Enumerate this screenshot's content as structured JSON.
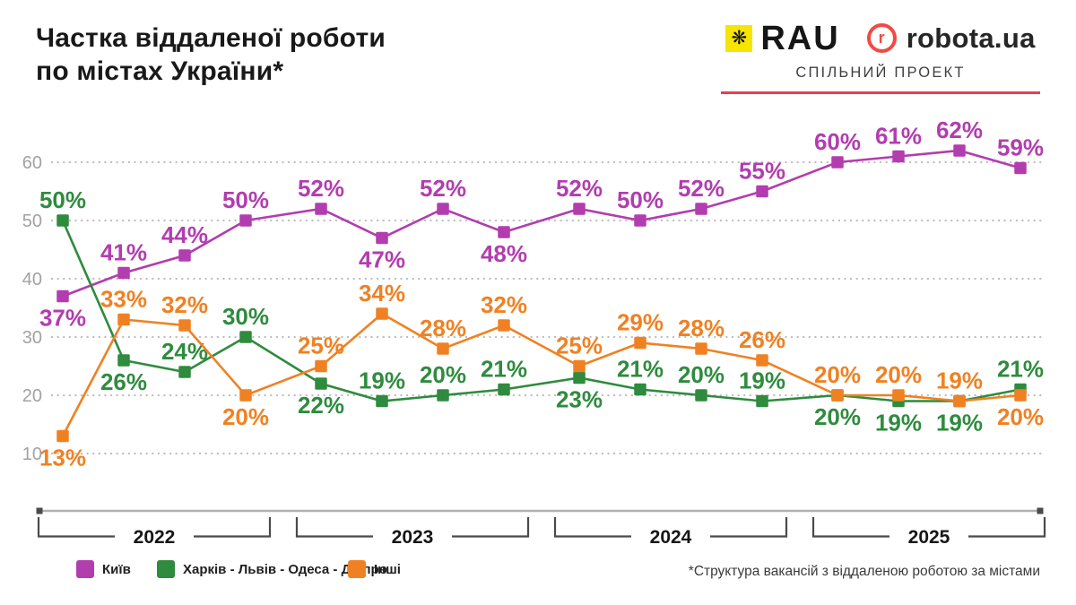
{
  "page": {
    "title_line1": "Частка віддаленої роботи",
    "title_line2": "по містах України*"
  },
  "header": {
    "rau_icon_glyph": "❋",
    "rau_text": "RAU",
    "robota_r": "r",
    "robota_text": "robota.ua",
    "subtitle": "СПІЛЬНИЙ ПРОЕКТ"
  },
  "footnote": "*Структура вакансій з віддаленою роботою за містами",
  "colors": {
    "rau_yellow": "#f6e500",
    "robota_red": "#f14a44",
    "accent_red": "#ef3a51",
    "axis_gray": "#b0b0b0",
    "bracket": "#4a4a4a",
    "grid": "#bdbdbd",
    "tick_label": "#a2a2a2",
    "year_label": "#161616"
  },
  "chart_data": {
    "type": "line",
    "title": "Частка віддаленої роботи по містах України*",
    "value_unit": "%",
    "x_axis": {
      "groups": [
        "2022",
        "2023",
        "2024",
        "2025"
      ],
      "points_per_group": 4,
      "granularity": "quarterly"
    },
    "y_axis": {
      "ticks": [
        10,
        20,
        30,
        40,
        50,
        60
      ],
      "range": [
        8,
        66
      ],
      "grid": "dotted-horizontal"
    },
    "legend_position": "bottom-left",
    "series": [
      {
        "name": "Київ",
        "color": "#b23daf",
        "values": [
          37,
          41,
          44,
          50,
          52,
          47,
          52,
          48,
          52,
          50,
          52,
          55,
          60,
          61,
          62,
          59
        ],
        "label_positions": [
          "below",
          "above",
          "above",
          "above",
          "above",
          "below",
          "above",
          "below",
          "above",
          "above",
          "above",
          "above",
          "above",
          "above",
          "above",
          "above"
        ]
      },
      {
        "name": "Харків - Львів - Одеса - Дніпро",
        "color": "#2f8b3e",
        "values": [
          50,
          26,
          24,
          30,
          22,
          19,
          20,
          21,
          23,
          21,
          20,
          19,
          20,
          19,
          19,
          21
        ],
        "label_positions": [
          "above",
          "below",
          "above",
          "above",
          "below",
          "above",
          "above",
          "above",
          "below",
          "above",
          "above",
          "above",
          "below",
          "below",
          "below",
          "above"
        ]
      },
      {
        "name": "Інші",
        "color": "#f08122",
        "values": [
          13,
          33,
          32,
          20,
          25,
          34,
          28,
          32,
          25,
          29,
          28,
          26,
          20,
          20,
          19,
          20
        ],
        "label_positions": [
          "below",
          "above",
          "above",
          "below",
          "above",
          "above",
          "above",
          "above",
          "above",
          "above",
          "above",
          "above",
          "above",
          "above",
          "above",
          "below"
        ]
      }
    ]
  }
}
